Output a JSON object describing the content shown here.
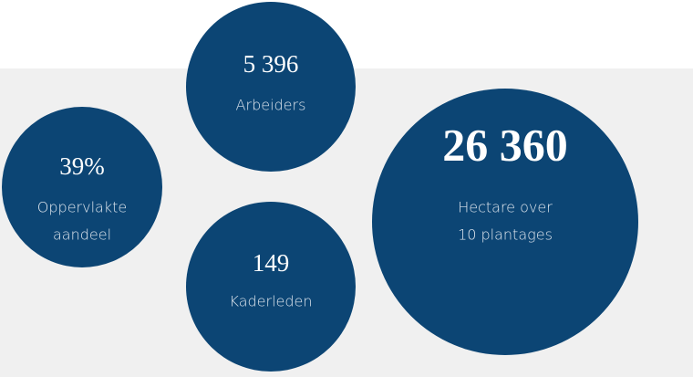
{
  "stats": [
    {
      "value": "39%",
      "label": [
        "Oppervlakte",
        "aandeel"
      ]
    },
    {
      "value": "5 396",
      "label": [
        "Arbeiders"
      ]
    },
    {
      "value": "149",
      "label": [
        "Kaderleden"
      ]
    },
    {
      "value": "26 360",
      "label": [
        "Hectare over",
        "10 plantages"
      ]
    }
  ]
}
